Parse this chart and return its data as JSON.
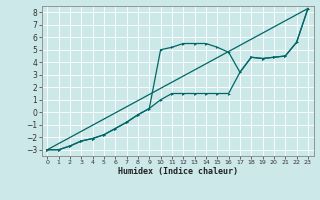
{
  "xlabel": "Humidex (Indice chaleur)",
  "bg_color": "#cce8e8",
  "grid_color": "#ffffff",
  "line_color": "#006666",
  "xlim": [
    -0.5,
    23.5
  ],
  "ylim": [
    -3.5,
    8.5
  ],
  "xticks": [
    0,
    1,
    2,
    3,
    4,
    5,
    6,
    7,
    8,
    9,
    10,
    11,
    12,
    13,
    14,
    15,
    16,
    17,
    18,
    19,
    20,
    21,
    22,
    23
  ],
  "yticks": [
    -3,
    -2,
    -1,
    0,
    1,
    2,
    3,
    4,
    5,
    6,
    7,
    8
  ],
  "line1_x": [
    0,
    1,
    2,
    3,
    4,
    5,
    6,
    7,
    8,
    9,
    10,
    11,
    12,
    13,
    14,
    15,
    16,
    17,
    18,
    19,
    20,
    21,
    22,
    23
  ],
  "line1_y": [
    -3.0,
    -3.0,
    -2.7,
    -2.3,
    -2.1,
    -1.8,
    -1.3,
    -0.8,
    -0.2,
    0.3,
    5.0,
    5.2,
    5.5,
    5.5,
    5.5,
    5.2,
    4.8,
    3.2,
    4.4,
    4.3,
    4.4,
    4.5,
    5.6,
    8.3
  ],
  "line2_x": [
    0,
    1,
    2,
    3,
    4,
    5,
    6,
    7,
    8,
    9,
    10,
    11,
    12,
    13,
    14,
    15,
    16,
    17,
    18,
    19,
    20,
    21,
    22,
    23
  ],
  "line2_y": [
    -3.0,
    -3.0,
    -2.7,
    -2.3,
    -2.1,
    -1.8,
    -1.3,
    -0.8,
    -0.2,
    0.3,
    1.0,
    1.5,
    1.5,
    1.5,
    1.5,
    1.5,
    1.5,
    3.2,
    4.4,
    4.3,
    4.4,
    4.5,
    5.6,
    8.3
  ],
  "line3_x": [
    0,
    23
  ],
  "line3_y": [
    -3.0,
    8.3
  ]
}
